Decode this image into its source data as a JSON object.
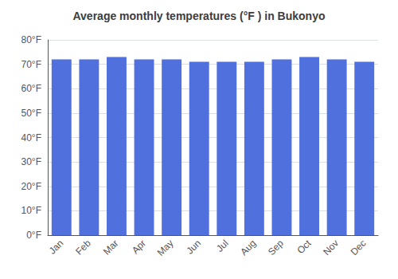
{
  "chart_data": {
    "type": "bar",
    "title": "Average monthly temperatures (°F ) in Bukonyo",
    "categories": [
      "Jan",
      "Feb",
      "Mar",
      "Apr",
      "May",
      "Jun",
      "Jul",
      "Aug",
      "Sep",
      "Oct",
      "Nov",
      "Dec"
    ],
    "values": [
      72,
      72,
      73,
      72,
      72,
      71,
      71,
      71,
      72,
      73,
      72,
      71
    ],
    "ylim": [
      0,
      80
    ],
    "yticks": [
      {
        "value": 0,
        "label": "0°F"
      },
      {
        "value": 10,
        "label": "10°F"
      },
      {
        "value": 20,
        "label": "20°F"
      },
      {
        "value": 30,
        "label": "30°F"
      },
      {
        "value": 40,
        "label": "40°F"
      },
      {
        "value": 50,
        "label": "50°F"
      },
      {
        "value": 60,
        "label": "60°F"
      },
      {
        "value": 70,
        "label": "70°F"
      },
      {
        "value": 80,
        "label": "80°F"
      }
    ],
    "grid": true
  }
}
